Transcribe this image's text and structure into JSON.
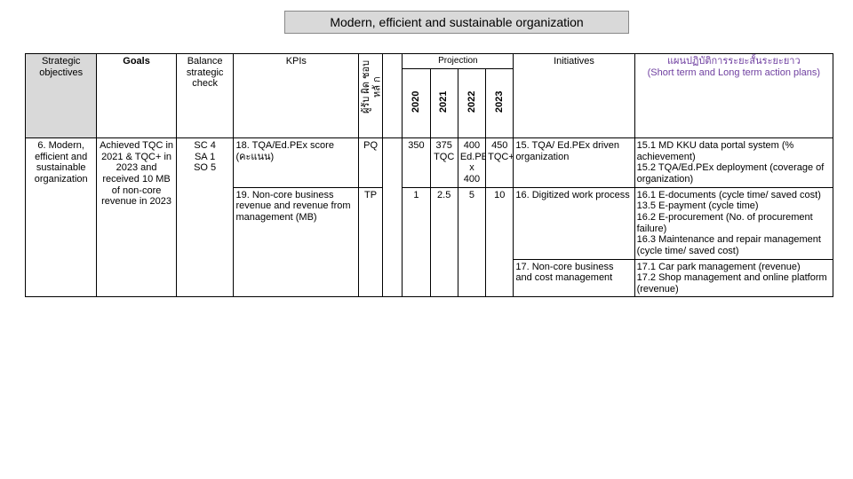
{
  "title": "Modern, efficient and sustainable organization",
  "headers": {
    "so": "Strategic objectives",
    "goals": "Goals",
    "bsc": "Balance strategic check",
    "kpis": "KPIs",
    "rot1": "ผู้รับ ผิด ชอบหลั ก",
    "projection": "Projection",
    "y2020": "2020",
    "y2021": "2021",
    "y2022": "2022",
    "y2023": "2023",
    "initiatives": "Initiatives",
    "plans": "แผนปฏิบัติการระยะสั้นระยะยาว\n(Short term and Long term action plans)"
  },
  "row": {
    "so": "6. Modern, efficient and sustainable organization",
    "goals": "Achieved TQC in 2021 & TQC+ in 2023 and received 10 MB of non-core revenue in 2023",
    "bsc": "SC 4\nSA 1\nSO 5",
    "kpi1": "18. TQA/Ed.PEx score (คะแนน)",
    "kpi2": "19. Non-core business revenue and revenue from management (MB)",
    "rot": "PQ",
    "rot_b": "TP",
    "p2020a": "350",
    "p2020b": "1",
    "p2021a": "375 TQC",
    "p2021b": "2.5",
    "p2022a": "400 Ed.PE x 400",
    "p2022b": "5",
    "p2023a": "450 TQC+",
    "p2023b": "10",
    "init1": "15. TQA/ Ed.PEx driven organization",
    "init2": "16. Digitized work process",
    "init3": "17. Non-core business and cost management",
    "plan1": "15.1 MD KKU data portal system (% achievement)\n15.2 TQA/Ed.PEx deployment (coverage of organization)",
    "plan2": "16.1 E-documents (cycle time/ saved cost)\n13.5 E-payment (cycle time)\n16.2 E-procurement (No. of procurement failure)\n16.3 Maintenance and repair management (cycle time/ saved cost)",
    "plan3": "17.1 Car park management (revenue)\n17.2  Shop management and online platform (revenue)"
  },
  "colors": {
    "header_bg": "#d9d9d9",
    "border": "#000000",
    "text": "#000000",
    "purple": "#6f3fa0"
  },
  "fontsize": {
    "title": 14,
    "cell": 11
  }
}
